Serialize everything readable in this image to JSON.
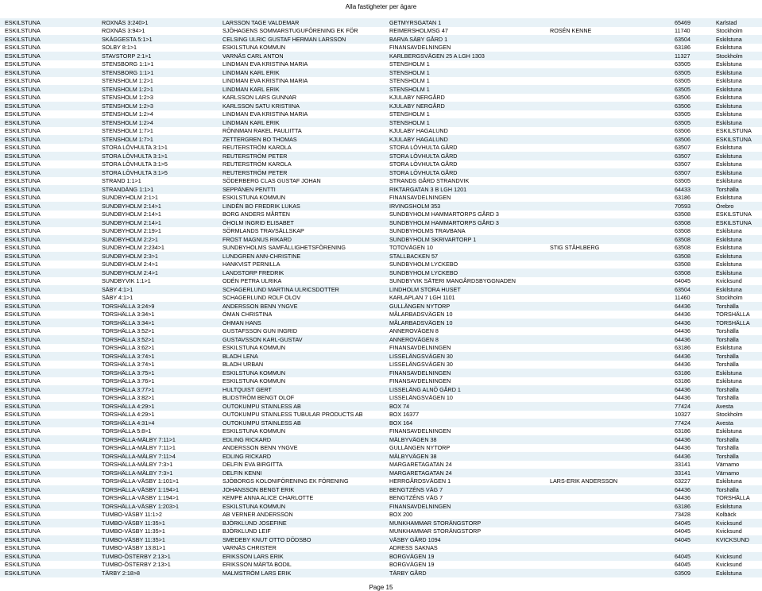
{
  "report_title": "Alla fastigheter per ägare",
  "page_number": "Page 15",
  "row_colors": {
    "even": "#e8f2f7",
    "odd": "#ffffff"
  },
  "text_color": "#000000",
  "font_size_pt": 6,
  "columns": [
    "kommun",
    "fastighet",
    "namn",
    "adress",
    "extra",
    "postnr",
    "ort"
  ],
  "rows": [
    [
      "ESKILSTUNA",
      "ROXNÄS 3:240>1",
      "LARSSON TAGE VALDEMAR",
      "GETMYRSGATAN 1",
      "",
      "65469",
      "Karlstad"
    ],
    [
      "ESKILSTUNA",
      "ROXNÄS 3:94>1",
      "SJÖHAGENS SOMMARSTUGUFÖRENING EK FÖR",
      "REIMERSHOLMSG 47",
      "ROSÉN KENNE",
      "11740",
      "Stockholm"
    ],
    [
      "ESKILSTUNA",
      "SKÄGGESTA 5:1>1",
      "CELSING ULRIC GUSTAF HERMAN LARSSON",
      "BARVA SÄBY GÅRD 1",
      "",
      "63504",
      "Eskilstuna"
    ],
    [
      "ESKILSTUNA",
      "SOLBY 8:1>1",
      "ESKILSTUNA KOMMUN",
      "FINANSAVDELNINGEN",
      "",
      "63186",
      "Eskilstuna"
    ],
    [
      "ESKILSTUNA",
      "STAVSTORP 2:1>1",
      "VARNÄS CARL ANTON",
      "KARLBERGSVÄGEN 25 A LGH 1303",
      "",
      "11327",
      "Stockholm"
    ],
    [
      "ESKILSTUNA",
      "STENSBORG 1:1>1",
      "LINDMAN EVA KRISTINA MARIA",
      "STENSHOLM 1",
      "",
      "63505",
      "Eskilstuna"
    ],
    [
      "ESKILSTUNA",
      "STENSBORG 1:1>1",
      "LINDMAN KARL ERIK",
      "STENSHOLM 1",
      "",
      "63505",
      "Eskilstuna"
    ],
    [
      "ESKILSTUNA",
      "STENSHOLM 1:2>1",
      "LINDMAN EVA KRISTINA MARIA",
      "STENSHOLM 1",
      "",
      "63505",
      "Eskilstuna"
    ],
    [
      "ESKILSTUNA",
      "STENSHOLM 1:2>1",
      "LINDMAN KARL ERIK",
      "STENSHOLM 1",
      "",
      "63505",
      "Eskilstuna"
    ],
    [
      "ESKILSTUNA",
      "STENSHOLM 1:2>3",
      "KARLSSON LARS GUNNAR",
      "KJULABY NERGÅRD",
      "",
      "63506",
      "Eskilstuna"
    ],
    [
      "ESKILSTUNA",
      "STENSHOLM 1:2>3",
      "KARLSSON SATU KRISTIINA",
      "KJULABY NERGÅRD",
      "",
      "63506",
      "Eskilstuna"
    ],
    [
      "ESKILSTUNA",
      "STENSHOLM 1:2>4",
      "LINDMAN EVA KRISTINA MARIA",
      "STENSHOLM 1",
      "",
      "63505",
      "Eskilstuna"
    ],
    [
      "ESKILSTUNA",
      "STENSHOLM 1:2>4",
      "LINDMAN KARL ERIK",
      "STENSHOLM 1",
      "",
      "63505",
      "Eskilstuna"
    ],
    [
      "ESKILSTUNA",
      "STENSHOLM 1:7>1",
      "RÖNNMAN RAKEL PAULIITTA",
      "KJULABY HAGALUND",
      "",
      "63506",
      "ESKILSTUNA"
    ],
    [
      "ESKILSTUNA",
      "STENSHOLM 1:7>1",
      "ZETTERGREN BO THOMAS",
      "KJULABY HAGALUND",
      "",
      "63506",
      "ESKILSTUNA"
    ],
    [
      "ESKILSTUNA",
      "STORA LÖVHULTA 3:1>1",
      "REUTERSTRÖM KAROLA",
      "STORA LÖVHULTA GÅRD",
      "",
      "63507",
      "Eskilstuna"
    ],
    [
      "ESKILSTUNA",
      "STORA LÖVHULTA 3:1>1",
      "REUTERSTRÖM PETER",
      "STORA LÖVHULTA GÅRD",
      "",
      "63507",
      "Eskilstuna"
    ],
    [
      "ESKILSTUNA",
      "STORA LÖVHULTA 3:1>5",
      "REUTERSTRÖM KAROLA",
      "STORA LÖVHULTA GÅRD",
      "",
      "63507",
      "Eskilstuna"
    ],
    [
      "ESKILSTUNA",
      "STORA LÖVHULTA 3:1>5",
      "REUTERSTRÖM PETER",
      "STORA LÖVHULTA GÅRD",
      "",
      "63507",
      "Eskilstuna"
    ],
    [
      "ESKILSTUNA",
      "STRAND 1:1>1",
      "SÖDERBERG CLAS GUSTAF JOHAN",
      "STRANDS GÅRD STRANDVIK",
      "",
      "63505",
      "Eskilstuna"
    ],
    [
      "ESKILSTUNA",
      "STRANDÄNG 1:1>1",
      "SEPPÄNEN PENTTI",
      "RIKTARGATAN 3 B LGH 1201",
      "",
      "64433",
      "Torshälla"
    ],
    [
      "ESKILSTUNA",
      "SUNDBYHOLM 2:1>1",
      "ESKILSTUNA KOMMUN",
      "FINANSAVDELNINGEN",
      "",
      "63186",
      "Eskilstuna"
    ],
    [
      "ESKILSTUNA",
      "SUNDBYHOLM 2:14>1",
      "LINDÉN BO FREDRIK LUKAS",
      "IRVINGSHOLM 353",
      "",
      "70593",
      "Örebro"
    ],
    [
      "ESKILSTUNA",
      "SUNDBYHOLM 2:14>1",
      "BORG ANDERS MÅRTEN",
      "SUNDBYHOLM HAMMARTORPS GÅRD 3",
      "",
      "63508",
      "ESKILSTUNA"
    ],
    [
      "ESKILSTUNA",
      "SUNDBYHOLM 2:14>1",
      "ÖHOLM INGRID ELISABET",
      "SUNDBYHOLM HAMMARTORPS GÅRD 3",
      "",
      "63508",
      "ESKILSTUNA"
    ],
    [
      "ESKILSTUNA",
      "SUNDBYHOLM 2:19>1",
      "SÖRMLANDS TRAVSÄLLSKAP",
      "SUNDBYHOLMS TRAVBANA",
      "",
      "63508",
      "Eskilstuna"
    ],
    [
      "ESKILSTUNA",
      "SUNDBYHOLM 2:2>1",
      "FROST MAGNUS RIKARD",
      "SUNDBYHOLM SKRIVARTORP 1",
      "",
      "63508",
      "Eskilstuna"
    ],
    [
      "ESKILSTUNA",
      "SUNDBYHOLM 2:234>1",
      "SUNDBYHOLMS SAMFÄLLIGHETSFÖRENING",
      "TOTOVÄGEN 10",
      "STIG STÅHLBERG",
      "63508",
      "Eskilstuna"
    ],
    [
      "ESKILSTUNA",
      "SUNDBYHOLM 2:3>1",
      "LUNDGREN ANN-CHRISTINE",
      "STALLBACKEN 57",
      "",
      "63508",
      "Eskilstuna"
    ],
    [
      "ESKILSTUNA",
      "SUNDBYHOLM 2:4>1",
      "HANKVIST PERNILLA",
      "SUNDBYHOLM LYCKEBO",
      "",
      "63508",
      "Eskilstuna"
    ],
    [
      "ESKILSTUNA",
      "SUNDBYHOLM 2:4>1",
      "LANDSTORP FREDRIK",
      "SUNDBYHOLM LYCKEBO",
      "",
      "63508",
      "Eskilstuna"
    ],
    [
      "ESKILSTUNA",
      "SUNDBYVIK 1:1>1",
      "ODÉN PETRA ULRIKA",
      "SUNDBYVIK SÄTERI MANGÅRDSBYGGNADEN",
      "",
      "64045",
      "Kvicksund"
    ],
    [
      "ESKILSTUNA",
      "SÄBY 4:1>1",
      "SCHAGERLUND MARTINA ULRICSDOTTER",
      "LINDHOLM STORA HUSET",
      "",
      "63504",
      "Eskilstuna"
    ],
    [
      "ESKILSTUNA",
      "SÄBY 4:1>1",
      "SCHAGERLUND ROLF OLOV",
      "KARLAPLAN 7 LGH 1101",
      "",
      "11460",
      "Stockholm"
    ],
    [
      "ESKILSTUNA",
      "TORSHÄLLA 3:24>9",
      "ANDERSSON BENN YNGVE",
      "GULLÄNGEN NYTORP",
      "",
      "64436",
      "Torshälla"
    ],
    [
      "ESKILSTUNA",
      "TORSHÄLLA 3:34>1",
      "ÖMAN CHRISTINA",
      "MÅLARBADSVÄGEN 10",
      "",
      "64436",
      "TORSHÄLLA"
    ],
    [
      "ESKILSTUNA",
      "TORSHÄLLA 3:34>1",
      "ÖHMAN HANS",
      "MÅLARBADSVÄGEN 10",
      "",
      "64436",
      "TORSHÄLLA"
    ],
    [
      "ESKILSTUNA",
      "TORSHÄLLA 3:52>1",
      "GUSTAFSSON GUN INGRID",
      "ANNEROVÄGEN 8",
      "",
      "64436",
      "Torshälla"
    ],
    [
      "ESKILSTUNA",
      "TORSHÄLLA 3:52>1",
      "GUSTAVSSON KARL-GUSTAV",
      "ANNEROVÄGEN 8",
      "",
      "64436",
      "Torshälla"
    ],
    [
      "ESKILSTUNA",
      "TORSHÄLLA 3:62>1",
      "ESKILSTUNA KOMMUN",
      "FINANSAVDELNINGEN",
      "",
      "63186",
      "Eskilstuna"
    ],
    [
      "ESKILSTUNA",
      "TORSHÄLLA 3:74>1",
      "BLADH LENA",
      "LISSELÄNGSVÄGEN 30",
      "",
      "64436",
      "Torshälla"
    ],
    [
      "ESKILSTUNA",
      "TORSHÄLLA 3:74>1",
      "BLADH URBAN",
      "LISSELÄNGSVÄGEN 30",
      "",
      "64436",
      "Torshälla"
    ],
    [
      "ESKILSTUNA",
      "TORSHÄLLA 3:75>1",
      "ESKILSTUNA KOMMUN",
      "FINANSAVDELNINGEN",
      "",
      "63186",
      "Eskilstuna"
    ],
    [
      "ESKILSTUNA",
      "TORSHÄLLA 3:76>1",
      "ESKILSTUNA KOMMUN",
      "FINANSAVDELNINGEN",
      "",
      "63186",
      "Eskilstuna"
    ],
    [
      "ESKILSTUNA",
      "TORSHÄLLA 3:77>1",
      "HULTQUIST GERT",
      "LISSELÄNG ALNÖ GÅRD 1",
      "",
      "64436",
      "Torshälla"
    ],
    [
      "ESKILSTUNA",
      "TORSHÄLLA 3:82>1",
      "BLIDSTRÖM BENGT OLOF",
      "LISSELÄNGSVÄGEN 10",
      "",
      "64436",
      "Torshälla"
    ],
    [
      "ESKILSTUNA",
      "TORSHÄLLA 4:29>1",
      "OUTOKUMPU STAINLESS AB",
      "BOX 74",
      "",
      "77424",
      "Avesta"
    ],
    [
      "ESKILSTUNA",
      "TORSHÄLLA 4:29>1",
      "OUTOKUMPU STAINLESS TUBULAR PRODUCTS AB",
      "BOX 16377",
      "",
      "10327",
      "Stockholm"
    ],
    [
      "ESKILSTUNA",
      "TORSHÄLLA 4:31>4",
      "OUTOKUMPU STAINLESS AB",
      "BOX 164",
      "",
      "77424",
      "Avesta"
    ],
    [
      "ESKILSTUNA",
      "TORSHÄLLA 5:8>1",
      "ESKILSTUNA KOMMUN",
      "FINANSAVDELNINGEN",
      "",
      "63186",
      "Eskilstuna"
    ],
    [
      "ESKILSTUNA",
      "TORSHÄLLA-MÄLBY 7:11>1",
      "EDLING RICKARD",
      "MÄLBYVÄGEN 38",
      "",
      "64436",
      "Torshälla"
    ],
    [
      "ESKILSTUNA",
      "TORSHÄLLA-MÄLBY 7:11>1",
      "ANDERSSON BENN YNGVE",
      "GULLÄNGEN NYTORP",
      "",
      "64436",
      "Torshälla"
    ],
    [
      "ESKILSTUNA",
      "TORSHÄLLA-MÄLBY 7:11>4",
      "EDLING RICKARD",
      "MÄLBYVÄGEN 38",
      "",
      "64436",
      "Torshälla"
    ],
    [
      "ESKILSTUNA",
      "TORSHÄLLA-MÄLBY 7:3>1",
      "DELFIN EVA BIRGITTA",
      "MARGARETAGATAN 24",
      "",
      "33141",
      "Värnamo"
    ],
    [
      "ESKILSTUNA",
      "TORSHÄLLA-MÄLBY 7:3>1",
      "DELFIN KENNI",
      "MARGARETAGATAN 24",
      "",
      "33141",
      "Värnamo"
    ],
    [
      "ESKILSTUNA",
      "TORSHÄLLA-VÄSBY 1:101>1",
      "SJÖBORGS KOLONIFÖRENING EK FÖRENING",
      "HERRGÅRDSVÄGEN 1",
      "LARS-ERIK ANDERSSON",
      "63227",
      "Eskilstuna"
    ],
    [
      "ESKILSTUNA",
      "TORSHÄLLA-VÄSBY 1:194>1",
      "JOHANSSON BENGT ERIK",
      "BENGTZÉNS VÄG 7",
      "",
      "64436",
      "Torshälla"
    ],
    [
      "ESKILSTUNA",
      "TORSHÄLLA-VÄSBY 1:194>1",
      "KEMPE ANNA ALICE CHARLOTTE",
      "BENGTZÉNS VÄG 7",
      "",
      "64436",
      "TORSHÄLLA"
    ],
    [
      "ESKILSTUNA",
      "TORSHÄLLA-VÄSBY 1:203>1",
      "ESKILSTUNA KOMMUN",
      "FINANSAVDELNINGEN",
      "",
      "63186",
      "Eskilstuna"
    ],
    [
      "ESKILSTUNA",
      "TUMBO-VÄSBY 11:1>2",
      "AB VERNER ANDERSSON",
      "BOX 200",
      "",
      "73428",
      "Kolbäck"
    ],
    [
      "ESKILSTUNA",
      "TUMBO-VÄSBY 11:35>1",
      "BJÖRKLUND JOSEFINE",
      "MUNKHAMMAR STORÄNGSTORP",
      "",
      "64045",
      "Kvicksund"
    ],
    [
      "ESKILSTUNA",
      "TUMBO-VÄSBY 11:35>1",
      "BJÖRKLUND LEIF",
      "MUNKHAMMAR STORÄNGSTORP",
      "",
      "64045",
      "Kvicksund"
    ],
    [
      "ESKILSTUNA",
      "TUMBO-VÄSBY 11:35>1",
      "SMEDEBY KNUT OTTO DÖDSBO",
      "VÄSBY GÅRD 1094",
      "",
      "64045",
      "KVICKSUND"
    ],
    [
      "ESKILSTUNA",
      "TUMBO-VÄSBY 13:81>1",
      "VARNÄS CHRISTER",
      "ADRESS SAKNAS",
      "",
      "",
      ""
    ],
    [
      "ESKILSTUNA",
      "TUMBO-ÖSTERBY 2:13>1",
      "ERIKSSON LARS ERIK",
      "BORGVÄGEN 19",
      "",
      "64045",
      "Kvicksund"
    ],
    [
      "ESKILSTUNA",
      "TUMBO-ÖSTERBY 2:13>1",
      "ERIKSSON MÄRTA BODIL",
      "BORGVÄGEN 19",
      "",
      "64045",
      "Kvicksund"
    ],
    [
      "ESKILSTUNA",
      "TÄRBY 2:18>8",
      "MALMSTRÖM LARS ERIK",
      "TÄRBY GÅRD",
      "",
      "63509",
      "Eskilstuna"
    ]
  ]
}
